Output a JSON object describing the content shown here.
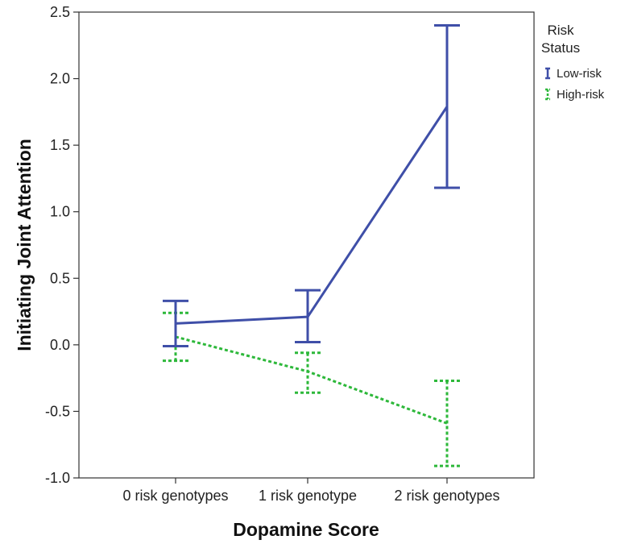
{
  "chart_data": {
    "type": "line",
    "xlabel": "Dopamine Score",
    "ylabel": "Initiating Joint Attention",
    "categories": [
      "0 risk genotypes",
      "1 risk genotype",
      "2 risk genotypes"
    ],
    "ylim": [
      -1.0,
      2.5
    ],
    "yticks": [
      "-1.0",
      "-0.5",
      "0.0",
      "0.5",
      "1.0",
      "1.5",
      "2.0",
      "2.5"
    ],
    "grid": false,
    "legend": {
      "title_lines": [
        "Risk",
        "Status"
      ],
      "placement": "right",
      "entries": [
        "Low-risk",
        "High-risk"
      ]
    },
    "series": [
      {
        "name": "Low-risk",
        "color": "#3f4fa8",
        "dashed": false,
        "values": [
          0.16,
          0.21,
          1.79
        ],
        "error_low": [
          -0.01,
          0.02,
          1.18
        ],
        "error_high": [
          0.33,
          0.41,
          2.4
        ]
      },
      {
        "name": "High-risk",
        "color": "#2db83a",
        "dashed": true,
        "values": [
          0.06,
          -0.2,
          -0.59
        ],
        "error_low": [
          -0.12,
          -0.36,
          -0.91
        ],
        "error_high": [
          0.24,
          -0.06,
          -0.27
        ]
      }
    ]
  }
}
